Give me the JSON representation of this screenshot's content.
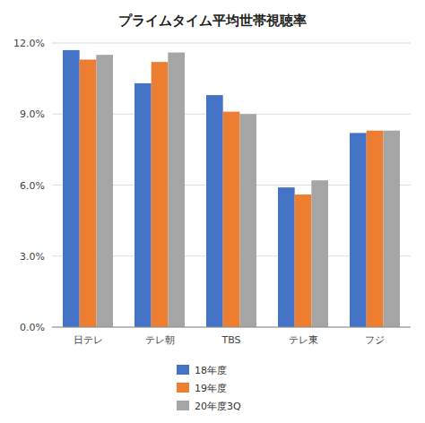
{
  "chart_data": {
    "type": "bar",
    "title": "プライムタイム平均世帯視聴率",
    "categories": [
      "日テレ",
      "テレ朝",
      "TBS",
      "テレ東",
      "フジ"
    ],
    "series": [
      {
        "name": "18年度",
        "color": "#4472C4",
        "values": [
          0.117,
          0.103,
          0.098,
          0.059,
          0.082
        ]
      },
      {
        "name": "19年度",
        "color": "#ED7D31",
        "values": [
          0.113,
          0.112,
          0.091,
          0.056,
          0.083
        ]
      },
      {
        "name": "20年度3Q",
        "color": "#A5A5A5",
        "values": [
          0.115,
          0.116,
          0.09,
          0.062,
          0.083
        ]
      }
    ],
    "ylim": [
      0,
      0.12
    ],
    "yticks": [
      {
        "value": 0.0,
        "label": "0.0%"
      },
      {
        "value": 0.03,
        "label": "3.0%"
      },
      {
        "value": 0.06,
        "label": "6.0%"
      },
      {
        "value": 0.09,
        "label": "9.0%"
      },
      {
        "value": 0.12,
        "label": "12.0%"
      }
    ],
    "grid": true,
    "legend": "bottom"
  }
}
